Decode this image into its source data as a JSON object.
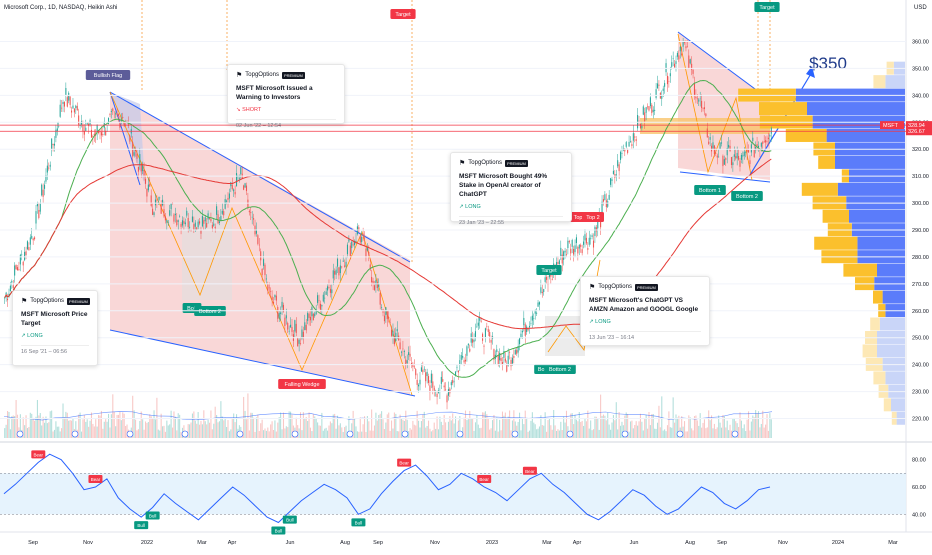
{
  "header": {
    "symbol": "Microsoft Corp., 1D, NASDAQ, Heikin Ashi",
    "currency": "USD"
  },
  "colors": {
    "up": "#26a69a",
    "down": "#ef5350",
    "pattern_fill": "#f7c6c6",
    "trendline": "#2962ff",
    "ma_long": "#e53935",
    "ma_short": "#4caf50"
  },
  "chart_data": [
    {
      "type": "candlestick",
      "ylim": [
        215,
        365
      ],
      "y_ticks": [
        "360.00",
        "350.00",
        "340.00",
        "330.00",
        "320.00",
        "310.00",
        "300.00",
        "290.00",
        "280.00",
        "270.00",
        "260.00",
        "250.00",
        "240.00",
        "230.00",
        "220.00"
      ],
      "x_ticks": [
        "Sep",
        "Nov",
        "2022",
        "Mar",
        "Apr",
        "Jun",
        "Aug",
        "Sep",
        "Nov",
        "2023",
        "Mar",
        "Apr",
        "Jun",
        "Aug",
        "Sep",
        "Nov",
        "2024",
        "Mar"
      ],
      "price_labels": [
        {
          "symbol": "MSFT",
          "value": "328.94",
          "color": "#f23645"
        },
        {
          "value": "326.67",
          "color": "#f23645"
        }
      ],
      "close_path": [
        [
          "Sep",
          265
        ],
        [
          "Oct",
          290
        ],
        [
          "Nov",
          340
        ],
        [
          "Dec",
          325
        ],
        [
          "2022",
          333
        ],
        [
          "Jan",
          300
        ],
        [
          "Feb",
          295
        ],
        [
          "Mar",
          292
        ],
        [
          "Apr",
          310
        ],
        [
          "May",
          265
        ],
        [
          "Jun",
          250
        ],
        [
          "Jul",
          270
        ],
        [
          "Aug",
          290
        ],
        [
          "Sep",
          255
        ],
        [
          "Oct",
          236
        ],
        [
          "Nov",
          230
        ],
        [
          "Dec",
          255
        ],
        [
          "2023",
          240
        ],
        [
          "Feb",
          262
        ],
        [
          "Mar",
          283
        ],
        [
          "Apr",
          288
        ],
        [
          "May",
          320
        ],
        [
          "Jun",
          338
        ],
        [
          "Jul",
          360
        ],
        [
          "Aug",
          320
        ],
        [
          "Sep",
          315
        ],
        [
          "Oct",
          328
        ]
      ],
      "annotations": [
        {
          "label": "Bullish Flag"
        },
        {
          "label": "Falling Wedge"
        },
        {
          "label": "Bott"
        },
        {
          "label": "Bottom 2"
        },
        {
          "label": "Target"
        },
        {
          "label": "Target"
        },
        {
          "label": "Target"
        },
        {
          "label": "Top"
        },
        {
          "label": "Top 2"
        },
        {
          "label": "Bot"
        },
        {
          "label": "Bottom 2"
        },
        {
          "label": "Bottom 1"
        },
        {
          "label": "Bottom 2"
        },
        {
          "label": "$350"
        }
      ],
      "volume_profile": [
        {
          "price": 350,
          "buy": 6,
          "sell": 8
        },
        {
          "price": 345,
          "buy": 10,
          "sell": 14
        },
        {
          "price": 340,
          "buy": 48,
          "sell": 78
        },
        {
          "price": 335,
          "buy": 40,
          "sell": 70
        },
        {
          "price": 330,
          "buy": 44,
          "sell": 66
        },
        {
          "price": 325,
          "buy": 34,
          "sell": 56
        },
        {
          "price": 320,
          "buy": 18,
          "sell": 50
        },
        {
          "price": 315,
          "buy": 14,
          "sell": 50
        },
        {
          "price": 310,
          "buy": 6,
          "sell": 40
        },
        {
          "price": 305,
          "buy": 30,
          "sell": 48
        },
        {
          "price": 300,
          "buy": 28,
          "sell": 42
        },
        {
          "price": 295,
          "buy": 22,
          "sell": 40
        },
        {
          "price": 290,
          "buy": 20,
          "sell": 38
        },
        {
          "price": 285,
          "buy": 36,
          "sell": 34
        },
        {
          "price": 280,
          "buy": 30,
          "sell": 34
        },
        {
          "price": 275,
          "buy": 28,
          "sell": 20
        },
        {
          "price": 270,
          "buy": 16,
          "sell": 22
        },
        {
          "price": 265,
          "buy": 8,
          "sell": 16
        },
        {
          "price": 260,
          "buy": 6,
          "sell": 14
        },
        {
          "price": 255,
          "buy": 8,
          "sell": 18
        },
        {
          "price": 250,
          "buy": 10,
          "sell": 20
        },
        {
          "price": 245,
          "buy": 12,
          "sell": 20
        },
        {
          "price": 240,
          "buy": 14,
          "sell": 16
        },
        {
          "price": 235,
          "buy": 10,
          "sell": 14
        },
        {
          "price": 230,
          "buy": 8,
          "sell": 12
        },
        {
          "price": 225,
          "buy": 6,
          "sell": 10
        },
        {
          "price": 220,
          "buy": 4,
          "sell": 6
        }
      ]
    },
    {
      "type": "line",
      "ylim": [
        30,
        90
      ],
      "y_ticks": [
        "80.00",
        "60.00",
        "40.00"
      ],
      "band": [
        40,
        70
      ],
      "values": [
        55,
        62,
        70,
        78,
        84,
        80,
        70,
        58,
        60,
        66,
        52,
        44,
        38,
        45,
        55,
        48,
        42,
        36,
        44,
        52,
        60,
        54,
        46,
        38,
        34,
        42,
        50,
        56,
        62,
        58,
        52,
        40,
        44,
        55,
        64,
        72,
        76,
        68,
        58,
        62,
        70,
        66,
        60,
        56,
        50,
        58,
        66,
        70,
        62,
        56,
        48,
        40,
        36,
        42,
        50,
        58,
        54,
        46,
        40,
        44,
        52,
        60,
        56,
        48,
        44,
        50,
        58,
        60
      ],
      "signal_labels": [
        "Bear",
        "Bear",
        "Bull",
        "Bull",
        "Bull",
        "Bull",
        "Bull",
        "Bear",
        "Bear",
        "Bear"
      ]
    }
  ],
  "cards": [
    {
      "author": "TopgOptions",
      "badge": "PREMIUM",
      "title": "MSFT Microsoft Price Target",
      "tag": "LONG",
      "tag_icon": "↗",
      "date": "16 Sep '21 – 06:56"
    },
    {
      "author": "TopgOptions",
      "badge": "PREMIUM",
      "title": "MSFT Microsoft Issued a Warning to Investors",
      "tag": "SHORT",
      "tag_icon": "↘",
      "date": "02 Jun '22 – 12:54"
    },
    {
      "author": "TopgOptions",
      "badge": "PREMIUM",
      "title": "MSFT Microsoft Bought 49% Stake in OpenAI creator of ChatGPT",
      "tag": "LONG",
      "tag_icon": "↗",
      "date": "23 Jan '23 – 22:55"
    },
    {
      "author": "TopgOptions",
      "badge": "PREMIUM",
      "title": "MSFT Microsoft's ChatGPT VS AMZN Amazon and GOOGL Google",
      "tag": "LONG",
      "tag_icon": "↗",
      "date": "13 Jun '23 – 16:14"
    }
  ]
}
